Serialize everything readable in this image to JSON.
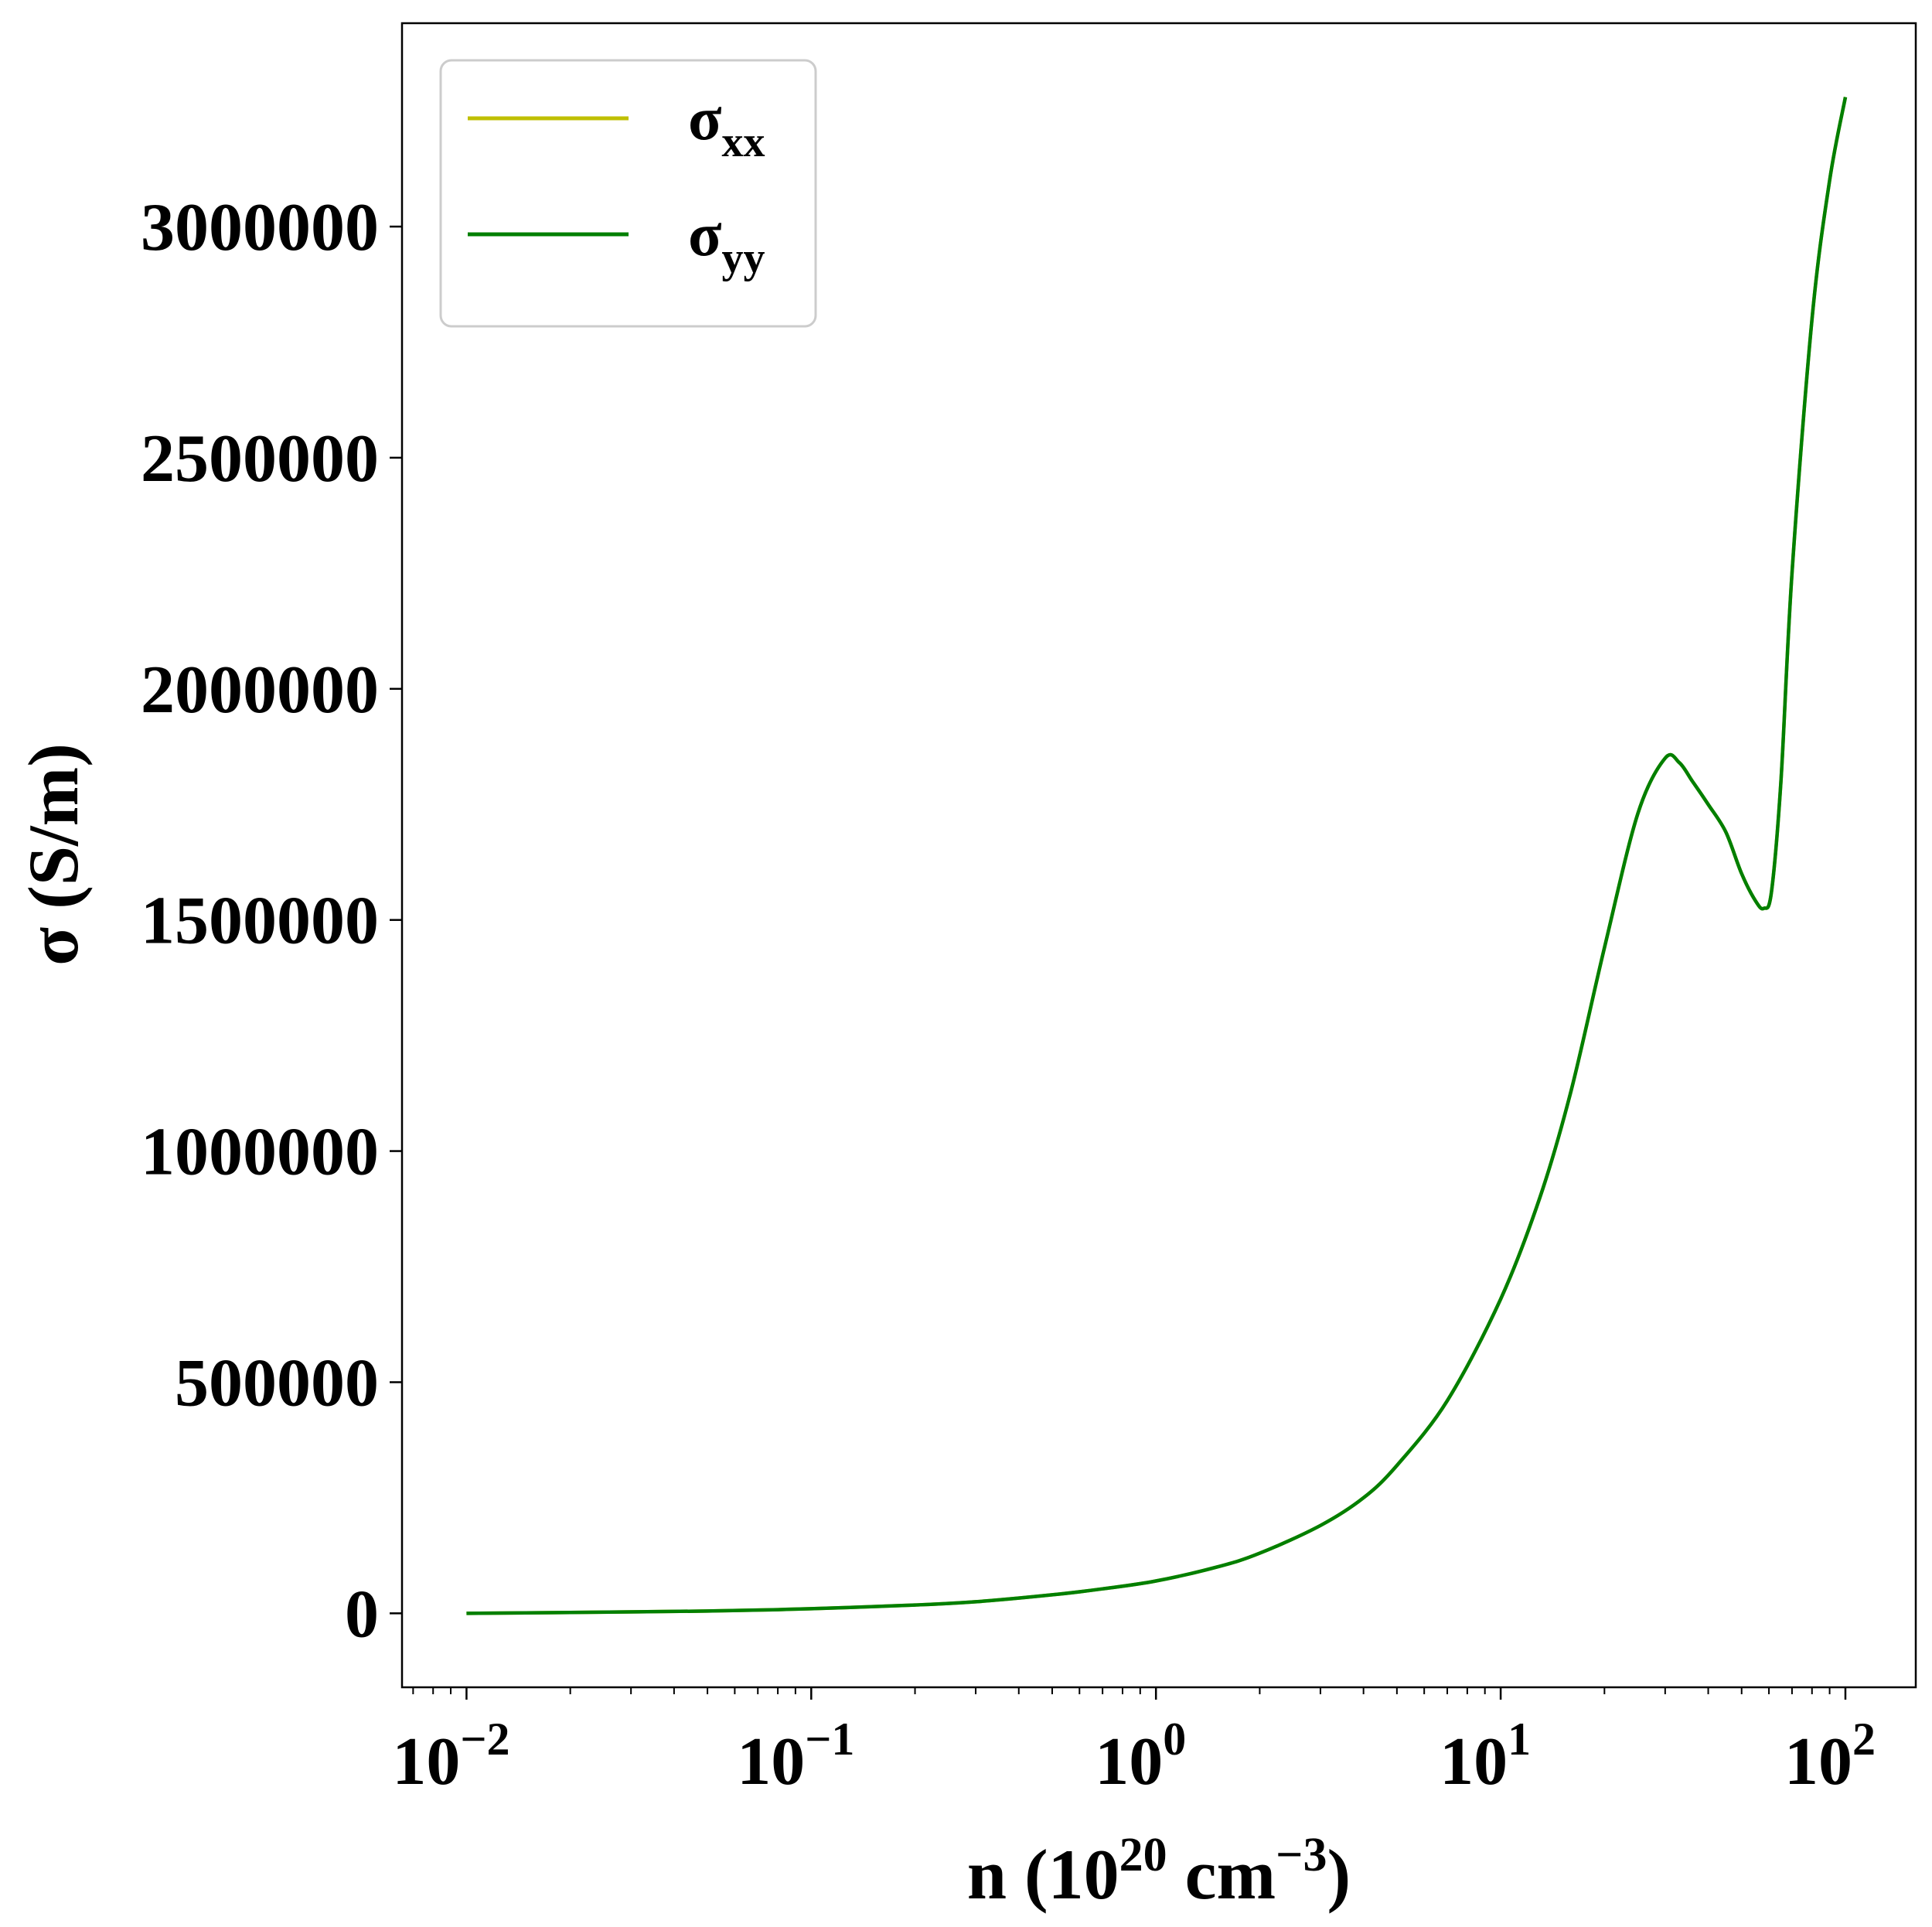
{
  "chart_data": {
    "type": "line",
    "xscale": "log",
    "xlim": [
      0.0065,
      160
    ],
    "ylim": [
      -160000,
      3440000
    ],
    "grid": false,
    "legend_position": "upper-left",
    "xlabel": {
      "main": "n (10",
      "exp": "20",
      "unit": " cm",
      "unit_exp": "−3",
      "close": ")"
    },
    "ylabel": "σ (S/m)",
    "x_ticks": [
      {
        "value": 0.01,
        "base": "10",
        "exp": "−2"
      },
      {
        "value": 0.1,
        "base": "10",
        "exp": "−1"
      },
      {
        "value": 1,
        "base": "10",
        "exp": "0"
      },
      {
        "value": 10,
        "base": "10",
        "exp": "1"
      },
      {
        "value": 100,
        "base": "10",
        "exp": "2"
      }
    ],
    "y_ticks": [
      {
        "value": 0,
        "label": "0"
      },
      {
        "value": 500000,
        "label": "500000"
      },
      {
        "value": 1000000,
        "label": "1000000"
      },
      {
        "value": 1500000,
        "label": "1500000"
      },
      {
        "value": 2000000,
        "label": "2000000"
      },
      {
        "value": 2500000,
        "label": "2500000"
      },
      {
        "value": 3000000,
        "label": "3000000"
      }
    ],
    "x": [
      0.01,
      0.02,
      0.05,
      0.1,
      0.2,
      0.3,
      0.5,
      0.7,
      1,
      1.5,
      2,
      3,
      4,
      5,
      7,
      10,
      13,
      16,
      20,
      25,
      30,
      33,
      36,
      40,
      45,
      50,
      55,
      58,
      61,
      65,
      70,
      80,
      90,
      100
    ],
    "series": [
      {
        "name_main": "σ",
        "name_sub": "xx",
        "color": "#bfbf00",
        "values": [
          0,
          2000,
          5000,
          10000,
          18000,
          25000,
          40000,
          53000,
          70000,
          100000,
          130000,
          190000,
          250000,
          320000,
          460000,
          680000,
          900000,
          1130000,
          1440000,
          1730000,
          1850000,
          1840000,
          1800000,
          1750000,
          1690000,
          1600000,
          1540000,
          1525000,
          1560000,
          1800000,
          2250000,
          2800000,
          3100000,
          3280000
        ]
      },
      {
        "name_main": "σ",
        "name_sub": "yy",
        "color": "#007f00",
        "values": [
          0,
          2000,
          5000,
          10000,
          18000,
          25000,
          40000,
          53000,
          70000,
          100000,
          130000,
          190000,
          250000,
          320000,
          460000,
          680000,
          900000,
          1130000,
          1440000,
          1730000,
          1850000,
          1840000,
          1800000,
          1750000,
          1690000,
          1600000,
          1540000,
          1525000,
          1560000,
          1800000,
          2250000,
          2800000,
          3100000,
          3280000
        ]
      }
    ]
  }
}
